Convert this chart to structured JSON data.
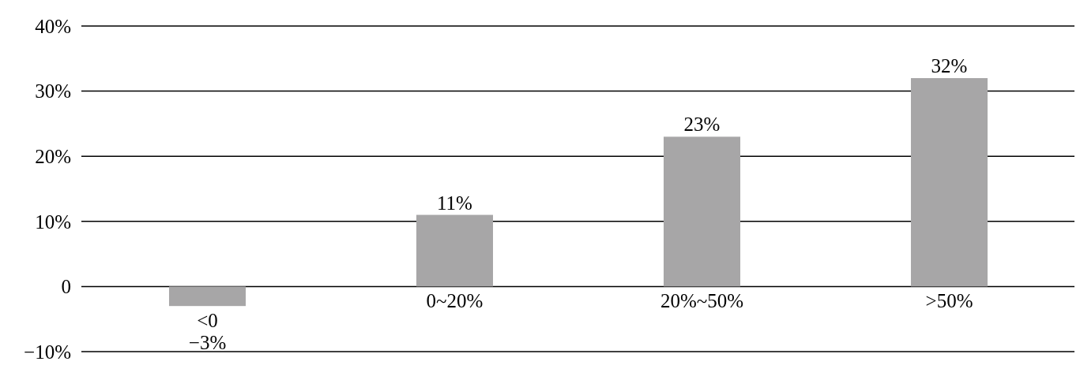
{
  "chart_data": {
    "type": "bar",
    "categories": [
      "<0",
      "0~20%",
      "20%~50%",
      ">50%"
    ],
    "values": [
      -3,
      11,
      23,
      32
    ],
    "color": "#a7a6a7",
    "value_labels": [
      "−3%",
      "11%",
      "23%",
      "32%"
    ],
    "ylim": [
      -10,
      40
    ],
    "yticks": [
      {
        "value": -10,
        "label": "−10%"
      },
      {
        "value": 0,
        "label": "0"
      },
      {
        "value": 10,
        "label": "10%"
      },
      {
        "value": 20,
        "label": "20%"
      },
      {
        "value": 30,
        "label": "30%"
      },
      {
        "value": 40,
        "label": "40%"
      }
    ],
    "grid": "y"
  }
}
